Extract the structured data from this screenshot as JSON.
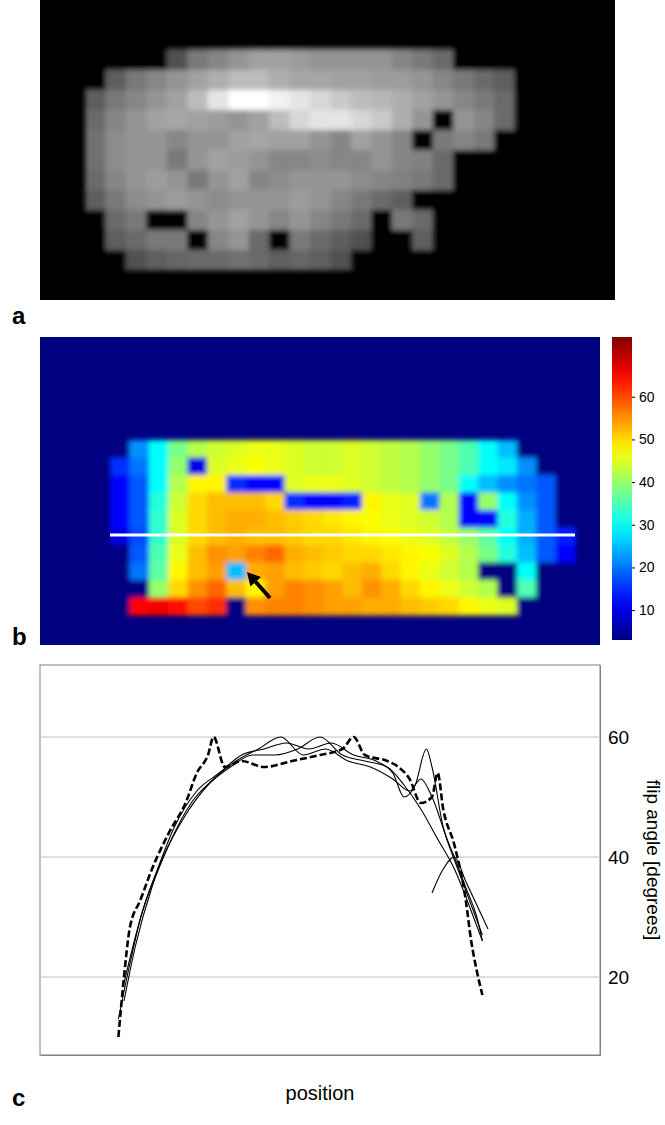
{
  "chart_data": [
    {
      "type": "heatmap",
      "label": "a",
      "color": "gray",
      "cells": [
        [
          0,
          0,
          0,
          0,
          0,
          0,
          0,
          0,
          0,
          0,
          0,
          0,
          0,
          0,
          0,
          0,
          0,
          0,
          0,
          0,
          0,
          0
        ],
        [
          0,
          0,
          0,
          0,
          30,
          45,
          50,
          55,
          60,
          60,
          58,
          55,
          55,
          55,
          55,
          50,
          45,
          40,
          0,
          0,
          0,
          0
        ],
        [
          0,
          35,
          45,
          50,
          55,
          60,
          65,
          70,
          70,
          65,
          62,
          62,
          60,
          60,
          58,
          58,
          55,
          50,
          45,
          40,
          35,
          0
        ],
        [
          35,
          45,
          50,
          55,
          60,
          70,
          85,
          95,
          95,
          90,
          85,
          80,
          75,
          70,
          68,
          65,
          60,
          55,
          50,
          45,
          40,
          0
        ],
        [
          40,
          50,
          55,
          60,
          62,
          60,
          58,
          55,
          60,
          70,
          80,
          85,
          85,
          80,
          75,
          65,
          55,
          0,
          55,
          50,
          40,
          0
        ],
        [
          42,
          52,
          55,
          55,
          50,
          55,
          55,
          60,
          62,
          60,
          60,
          55,
          50,
          60,
          55,
          50,
          0,
          45,
          50,
          45,
          0,
          0
        ],
        [
          42,
          52,
          55,
          55,
          45,
          55,
          60,
          58,
          55,
          50,
          50,
          52,
          50,
          50,
          55,
          50,
          48,
          40,
          0,
          0,
          0,
          0
        ],
        [
          40,
          50,
          55,
          58,
          55,
          45,
          55,
          60,
          50,
          52,
          55,
          55,
          55,
          52,
          50,
          48,
          45,
          40,
          0,
          0,
          0,
          0
        ],
        [
          35,
          45,
          52,
          55,
          58,
          55,
          52,
          55,
          55,
          55,
          58,
          55,
          50,
          45,
          40,
          35,
          0,
          0,
          0,
          0,
          0,
          0
        ],
        [
          0,
          40,
          45,
          0,
          0,
          50,
          55,
          60,
          55,
          50,
          55,
          50,
          45,
          40,
          0,
          45,
          40,
          0,
          0,
          0,
          0,
          0
        ],
        [
          0,
          35,
          40,
          45,
          45,
          0,
          50,
          55,
          40,
          0,
          45,
          40,
          35,
          30,
          0,
          0,
          35,
          0,
          0,
          0,
          0,
          0
        ],
        [
          0,
          0,
          30,
          35,
          38,
          40,
          40,
          42,
          40,
          35,
          38,
          35,
          30,
          0,
          0,
          0,
          0,
          0,
          0,
          0,
          0,
          0
        ]
      ]
    },
    {
      "type": "heatmap",
      "label": "b",
      "color": "jet",
      "cells": [
        [
          0,
          22,
          30,
          38,
          42,
          44,
          45,
          46,
          46,
          45,
          44,
          44,
          45,
          44,
          43,
          42,
          40,
          38,
          35,
          30,
          25,
          0,
          0,
          0
        ],
        [
          15,
          20,
          30,
          40,
          10,
          45,
          46,
          47,
          46,
          45,
          44,
          44,
          45,
          44,
          43,
          42,
          40,
          38,
          35,
          30,
          28,
          22,
          0,
          0
        ],
        [
          12,
          18,
          30,
          42,
          48,
          48,
          15,
          12,
          12,
          45,
          46,
          46,
          45,
          44,
          43,
          42,
          40,
          38,
          30,
          25,
          22,
          20,
          18,
          0
        ],
        [
          12,
          18,
          32,
          44,
          50,
          52,
          52,
          52,
          50,
          15,
          12,
          12,
          14,
          48,
          46,
          45,
          20,
          42,
          12,
          40,
          30,
          22,
          18,
          0
        ],
        [
          12,
          18,
          33,
          45,
          50,
          52,
          53,
          53,
          52,
          51,
          50,
          49,
          48,
          47,
          46,
          45,
          44,
          42,
          12,
          12,
          32,
          24,
          18,
          0
        ],
        [
          10,
          17,
          33,
          45,
          50,
          52,
          53,
          52,
          52,
          51,
          50,
          50,
          49,
          48,
          47,
          46,
          45,
          43,
          40,
          36,
          30,
          24,
          18,
          14
        ],
        [
          0,
          18,
          35,
          46,
          52,
          55,
          54,
          56,
          58,
          53,
          52,
          51,
          50,
          50,
          49,
          48,
          47,
          45,
          42,
          38,
          32,
          25,
          18,
          12
        ],
        [
          0,
          20,
          36,
          48,
          52,
          54,
          25,
          53,
          54,
          52,
          51,
          50,
          52,
          53,
          50,
          48,
          46,
          44,
          42,
          0,
          0,
          30,
          0,
          0
        ],
        [
          0,
          0,
          40,
          50,
          55,
          58,
          52,
          48,
          54,
          56,
          55,
          54,
          52,
          55,
          53,
          50,
          48,
          46,
          44,
          42,
          0,
          35,
          0,
          0
        ],
        [
          0,
          65,
          66,
          64,
          60,
          62,
          0,
          55,
          56,
          56,
          55,
          54,
          54,
          53,
          53,
          52,
          51,
          50,
          48,
          46,
          45,
          0,
          0,
          0
        ]
      ],
      "colorbar_range": [
        3,
        74
      ],
      "colorbar_ticks": [
        10,
        20,
        30,
        40,
        50,
        60
      ]
    },
    {
      "type": "line",
      "label": "c",
      "xlabel": "position",
      "ylabel": "flip angle [degrees]",
      "xlim": [
        0,
        100
      ],
      "ylim": [
        7,
        72
      ],
      "yticks": [
        20,
        40,
        60
      ],
      "grid": true,
      "tick_labels": "y",
      "series": [
        {
          "color": "#000000",
          "line_style": "dashed",
          "x": [
            14,
            15,
            16,
            18,
            20,
            23,
            26,
            28,
            30,
            31,
            33,
            36,
            40,
            45,
            50,
            54,
            56,
            58,
            62,
            64,
            66,
            68,
            70,
            71,
            72,
            74,
            76,
            77,
            78,
            79
          ],
          "values": [
            10,
            20,
            28,
            33,
            38,
            44,
            49,
            54,
            57,
            60,
            55,
            56,
            55,
            56,
            57,
            58,
            60,
            57,
            56,
            55,
            53,
            49,
            50,
            54,
            48,
            42,
            33,
            26,
            21,
            17
          ]
        },
        {
          "color": "#000000",
          "line_style": "solid",
          "x": [
            14,
            16,
            18,
            21,
            24,
            28,
            32,
            36,
            40,
            44,
            48,
            52,
            56,
            60,
            63,
            65,
            67,
            69,
            70,
            72,
            74,
            76,
            78,
            79
          ],
          "values": [
            13,
            22,
            30,
            38,
            45,
            51,
            54,
            57,
            58,
            59,
            58,
            59,
            57,
            56,
            54,
            50,
            52,
            58,
            55,
            45,
            40,
            35,
            30,
            26
          ]
        },
        {
          "color": "#000000",
          "line_style": "solid",
          "x": [
            15,
            17,
            20,
            23,
            27,
            31,
            35,
            39,
            43,
            47,
            51,
            55,
            59,
            63,
            66,
            68,
            70,
            73,
            75,
            77,
            79
          ],
          "values": [
            16,
            25,
            35,
            42,
            49,
            53,
            56,
            58,
            60,
            57,
            58,
            56,
            55,
            53,
            51,
            53,
            50,
            42,
            37,
            32,
            27
          ]
        },
        {
          "color": "#000000",
          "line_style": "solid",
          "x": [
            15,
            18,
            22,
            26,
            30,
            34,
            38,
            42,
            46,
            50,
            54,
            58,
            62,
            65,
            68,
            71,
            74,
            77,
            79
          ],
          "values": [
            19,
            30,
            40,
            47,
            52,
            55,
            57,
            57,
            58,
            60,
            57,
            56,
            55,
            52,
            48,
            43,
            38,
            31,
            26
          ]
        },
        {
          "color": "#000000",
          "line_style": "solid",
          "x": [
            70,
            72,
            74,
            76,
            78,
            80
          ],
          "values": [
            34,
            38,
            40,
            36,
            32,
            28
          ]
        }
      ]
    }
  ]
}
